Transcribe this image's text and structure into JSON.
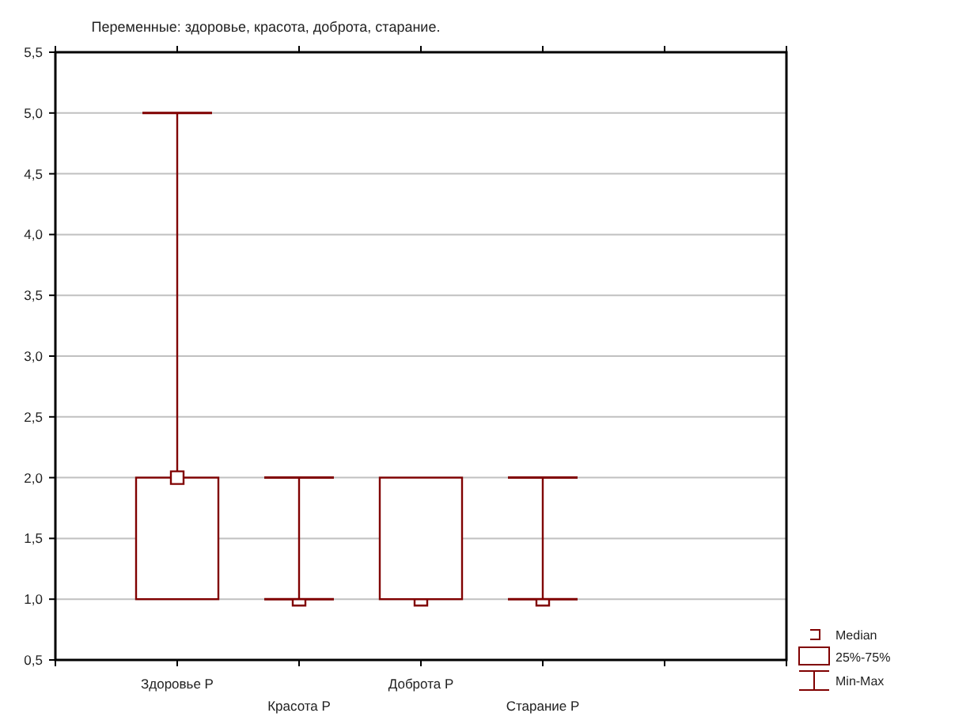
{
  "chart_data": {
    "type": "box",
    "title": "Переменные: здоровье, красота, доброта, старание.",
    "categories": [
      "Здоровье Р",
      "Красота Р",
      "Доброта Р",
      "Старание Р"
    ],
    "boxes": [
      {
        "low": 1,
        "q1": 1,
        "median": 2,
        "q3": 2,
        "high": 5
      },
      {
        "low": 1,
        "q1": 1,
        "median": 1,
        "q3": 1,
        "high": 2
      },
      {
        "low": 1,
        "q1": 1,
        "median": 1,
        "q3": 2,
        "high": 2
      },
      {
        "low": 1,
        "q1": 1,
        "median": 1,
        "q3": 1,
        "high": 2
      }
    ],
    "color": "#800000",
    "ylim": [
      0.5,
      5.5
    ],
    "yticks": [
      {
        "value": 0.5,
        "label": "0,5"
      },
      {
        "value": 1,
        "label": "1,0"
      },
      {
        "value": 1.5,
        "label": "1,5"
      },
      {
        "value": 2,
        "label": "2,0"
      },
      {
        "value": 2.5,
        "label": "2,5"
      },
      {
        "value": 3,
        "label": "3,0"
      },
      {
        "value": 3.5,
        "label": "3,5"
      },
      {
        "value": 4,
        "label": "4,0"
      },
      {
        "value": 4.5,
        "label": "4,5"
      },
      {
        "value": 5,
        "label": "5,0"
      },
      {
        "value": 5.5,
        "label": "5,5"
      }
    ],
    "grid": "y",
    "annotations": [
      "Median",
      "25%-75%",
      "Min-Max"
    ]
  }
}
